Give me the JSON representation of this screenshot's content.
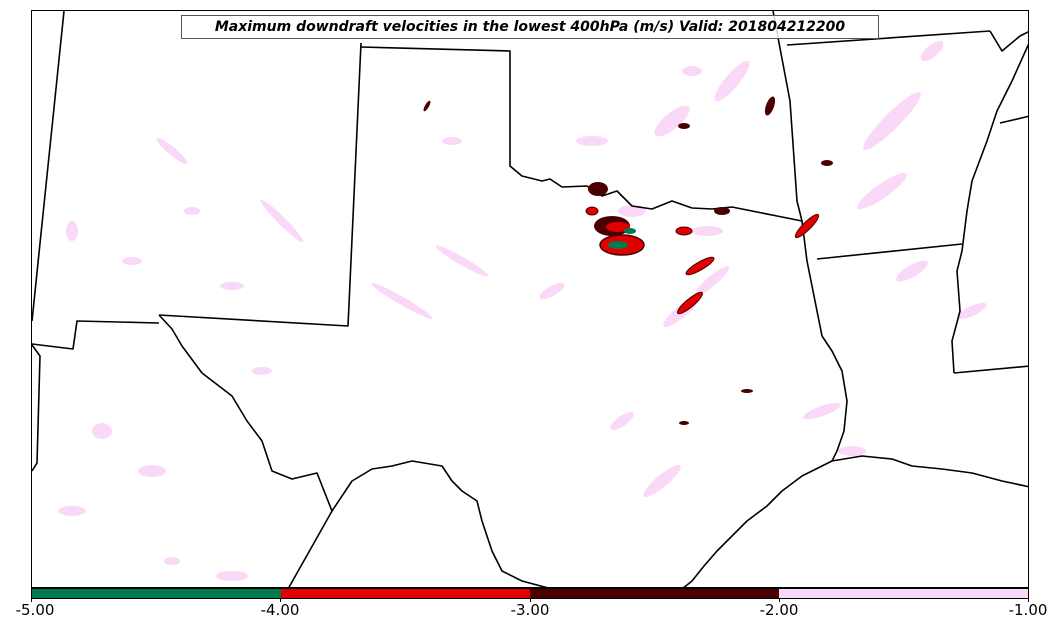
{
  "title": "Maximum downdraft velocities in the lowest 400hPa (m/s) Valid: 201804212200",
  "colorbar": {
    "ticks": [
      "-5.00",
      "-4.00",
      "-3.00",
      "-2.00",
      "-1.00"
    ],
    "bins": [
      {
        "min": -5,
        "max": -4,
        "color": "#007a4d"
      },
      {
        "min": -4,
        "max": -3,
        "color": "#e00000"
      },
      {
        "min": -3,
        "max": -2,
        "color": "#4a0000"
      },
      {
        "min": -2,
        "max": -1,
        "color": "#f9d9f7"
      }
    ]
  },
  "map": {
    "region": "Southern Plains / Texas",
    "boundary_color": "#000000",
    "field_colors": {
      "weak": "#f9d9f7",
      "moderate": "#4a0000",
      "strong": "#e00000",
      "extreme": "#007a4d"
    }
  }
}
